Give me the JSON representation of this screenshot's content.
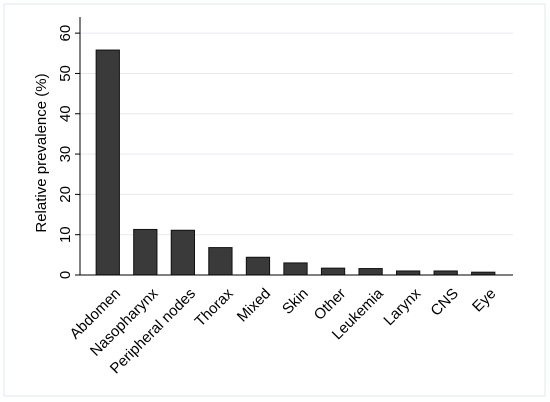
{
  "chart_data": {
    "type": "bar",
    "ylabel": "Relative prevalence (%)",
    "categories": [
      "Abdomen",
      "Nasopharynx",
      "Peripheral nodes",
      "Thorax",
      "Mixed",
      "Skin",
      "Other",
      "Leukemia",
      "Larynx",
      "CNS",
      "Eye"
    ],
    "values": [
      55.8,
      11.3,
      11.1,
      6.8,
      4.4,
      3.0,
      1.7,
      1.6,
      1.0,
      1.0,
      0.7
    ],
    "color": "#3a3a3a",
    "ylim": [
      0,
      64
    ],
    "yticks": [
      0,
      10,
      20,
      30,
      40,
      50,
      60
    ],
    "grid": true
  }
}
